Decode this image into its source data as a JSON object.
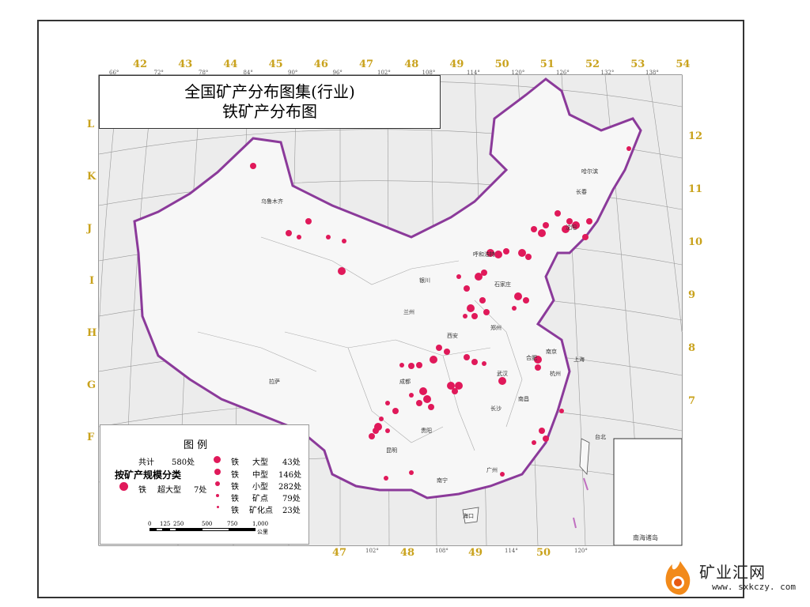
{
  "title": {
    "line1": "全国矿产分布图集(行业)",
    "line2": "铁矿产分布图"
  },
  "grid": {
    "top": [
      "42",
      "43",
      "44",
      "45",
      "46",
      "47",
      "48",
      "49",
      "50",
      "51",
      "52",
      "53",
      "54"
    ],
    "top_degrees": [
      "66°",
      "72°",
      "78°",
      "84°",
      "90°",
      "96°",
      "102°",
      "108°",
      "114°",
      "120°",
      "126°",
      "132°",
      "138°"
    ],
    "left": [
      "L",
      "K",
      "J",
      "I",
      "H",
      "G",
      "F"
    ],
    "right": [
      "12",
      "11",
      "10",
      "9",
      "8",
      "7"
    ],
    "bottom": [
      "47",
      "48",
      "49",
      "50"
    ],
    "bottom_degrees": [
      "102°",
      "108°",
      "114°",
      "120°"
    ]
  },
  "cities": [
    "乌鲁木齐",
    "哈尔滨",
    "长春",
    "沈阳",
    "呼和浩特",
    "石家庄",
    "郑州",
    "西安",
    "兰州",
    "银川",
    "成都",
    "武汉",
    "长沙",
    "南昌",
    "合肥",
    "南京",
    "杭州",
    "上海",
    "贵阳",
    "昆明",
    "南宁",
    "广州",
    "拉萨",
    "台北",
    "海口"
  ],
  "legend": {
    "title": "图    例",
    "total_label": "共计",
    "total_value": "580处",
    "category": "按矿产规模分类",
    "items": [
      {
        "mineral": "铁",
        "scale": "超大型",
        "count": "7处"
      },
      {
        "mineral": "铁",
        "scale": "大型",
        "count": "43处"
      },
      {
        "mineral": "铁",
        "scale": "中型",
        "count": "146处"
      },
      {
        "mineral": "铁",
        "scale": "小型",
        "count": "282处"
      },
      {
        "mineral": "铁",
        "scale": "矿点",
        "count": "79处"
      },
      {
        "mineral": "铁",
        "scale": "矿化点",
        "count": "23处"
      }
    ],
    "scalebar": {
      "ticks": [
        "0",
        "125",
        "250",
        "500",
        "750",
        "1,000"
      ],
      "unit": "公里"
    }
  },
  "inset": {
    "label": "南海诸岛"
  },
  "watermark": {
    "name": "矿业汇网",
    "url": "www. sxkczy. com"
  },
  "colors": {
    "deposit": "#e0195a",
    "border": "#8b3a9a",
    "grid_label": "#c9a21c",
    "land": "#f2f2f2"
  }
}
